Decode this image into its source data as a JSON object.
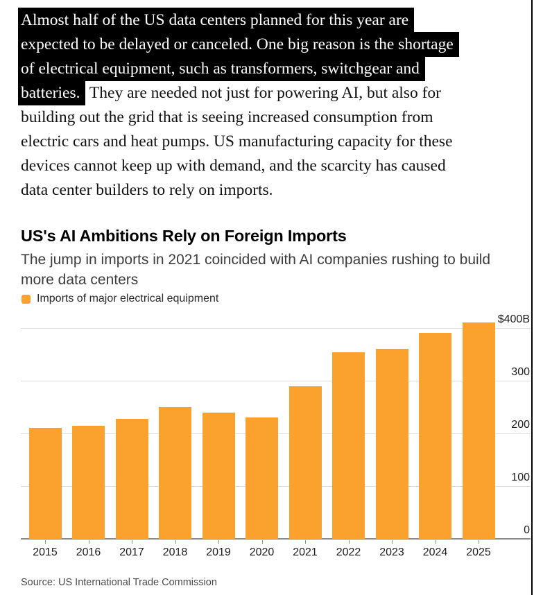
{
  "article": {
    "highlight_bg": "#000000",
    "highlight_fg": "#ffffff",
    "lines": [
      {
        "hl": "Almost half of the US data centers planned for this year are",
        "txt": ""
      },
      {
        "hl": "expected to be delayed or canceled. One big reason is the shortage",
        "txt": ""
      },
      {
        "hl": "of electrical equipment, such as transformers, switchgear and",
        "txt": ""
      },
      {
        "hl": "batteries.",
        "txt": " They are needed not just for powering AI, but also for"
      },
      {
        "hl": "",
        "txt": "building out the grid that is seeing increased consumption from"
      },
      {
        "hl": "",
        "txt": "electric cars and heat pumps. US manufacturing capacity for these"
      },
      {
        "hl": "",
        "txt": "devices cannot keep up with demand, and the scarcity has caused"
      },
      {
        "hl": "",
        "txt": "data center builders to rely on imports."
      }
    ]
  },
  "chart": {
    "title": "US's AI Ambitions Rely on Foreign Imports",
    "subtitle_lines": [
      "The jump in imports in 2021 coincided with AI companies rushing to build",
      "more data centers"
    ],
    "legend": {
      "label": "Imports of major electrical equipment",
      "swatch_color": "#FBA12E"
    },
    "source": "Source: US International Trade Commission"
  },
  "chart_data": {
    "type": "bar",
    "title": "US's AI Ambitions Rely on Foreign Imports",
    "subtitle": "The jump in imports in 2021 coincided with AI companies rushing to build more data centers",
    "series_label": "Imports of major electrical equipment",
    "categories": [
      "2015",
      "2016",
      "2017",
      "2018",
      "2019",
      "2020",
      "2021",
      "2022",
      "2023",
      "2024",
      "2025"
    ],
    "values": [
      210,
      215,
      228,
      250,
      239,
      230,
      290,
      354,
      360,
      391,
      410
    ],
    "y_ticks": [
      {
        "label": "$400B",
        "value": 400
      },
      {
        "label": "300",
        "value": 300
      },
      {
        "label": "200",
        "value": 200
      },
      {
        "label": "100",
        "value": 100
      },
      {
        "label": "0",
        "value": 0
      }
    ],
    "ylim": [
      0,
      430
    ],
    "bar_color": "#FBA12E",
    "grid": true,
    "legend_position": "top-left",
    "y_axis_side": "right",
    "source": "Source: US International Trade Commission"
  }
}
